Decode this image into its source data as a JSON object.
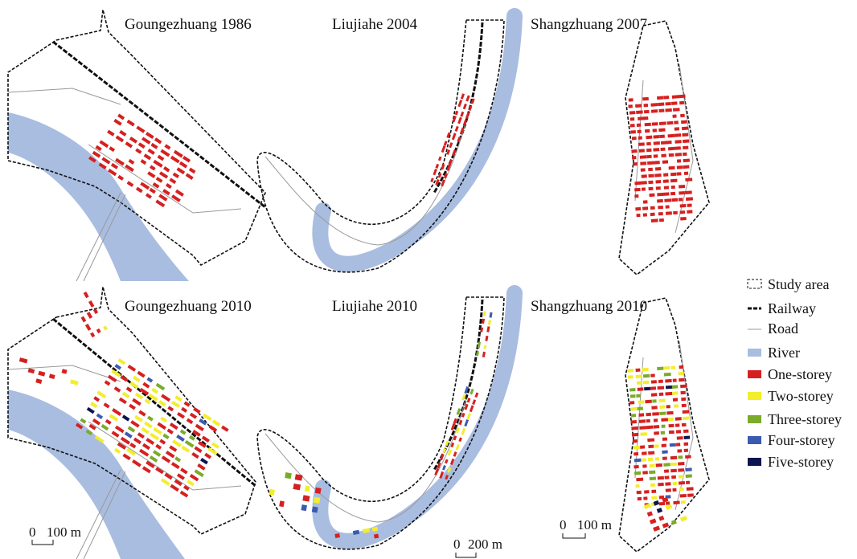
{
  "panels": [
    {
      "title": "Goungezhuang 1986"
    },
    {
      "title": "Liujiahe 2004"
    },
    {
      "title": "Shangzhuang 2007"
    },
    {
      "title": "Goungezhuang 2010"
    },
    {
      "title": "Liujiahe 2010"
    },
    {
      "title": "Shangzhuang 2010"
    }
  ],
  "legend": {
    "items": [
      {
        "label": "Study area"
      },
      {
        "label": "Railway"
      },
      {
        "label": "Road"
      },
      {
        "label": "River"
      },
      {
        "label": "One-storey"
      },
      {
        "label": "Two-storey"
      },
      {
        "label": "Three-storey"
      },
      {
        "label": "Four-storey"
      },
      {
        "label": "Five-storey"
      }
    ]
  },
  "scale_bars": [
    {
      "zero": "0",
      "length": "100 m"
    },
    {
      "zero": "0",
      "length": "200 m"
    },
    {
      "zero": "0",
      "length": "100 m"
    }
  ]
}
